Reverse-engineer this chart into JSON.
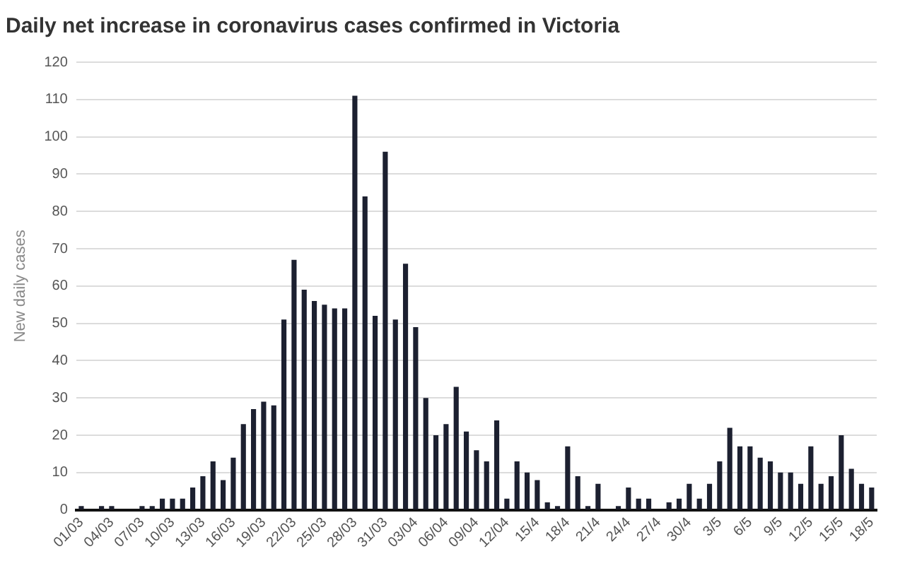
{
  "chart_data": {
    "type": "bar",
    "title": "Daily net increase in coronavirus cases confirmed in Victoria",
    "ylabel": "New daily cases",
    "categories": [
      "01/03",
      null,
      null,
      "04/03",
      null,
      null,
      "07/03",
      null,
      null,
      "10/03",
      null,
      null,
      "13/03",
      null,
      null,
      "16/03",
      null,
      null,
      "19/03",
      null,
      null,
      "22/03",
      null,
      null,
      "25/03",
      null,
      null,
      "28/03",
      null,
      null,
      "31/03",
      null,
      null,
      "03/04",
      null,
      null,
      "06/04",
      null,
      null,
      "09/04",
      null,
      null,
      "12/04",
      null,
      null,
      "15/4",
      null,
      null,
      "18/4",
      null,
      null,
      "21/4",
      null,
      null,
      "24/4",
      null,
      null,
      "27/4",
      null,
      null,
      "30/4",
      null,
      null,
      "3/5",
      null,
      null,
      "6/5",
      null,
      null,
      "9/5",
      null,
      null,
      "12/5",
      null,
      null,
      "15/5",
      null,
      null,
      "18/5"
    ],
    "values": [
      1,
      0,
      1,
      1,
      0,
      0,
      1,
      1,
      3,
      3,
      3,
      6,
      9,
      13,
      8,
      14,
      23,
      27,
      29,
      28,
      51,
      67,
      59,
      56,
      55,
      54,
      54,
      111,
      84,
      52,
      96,
      51,
      66,
      49,
      30,
      20,
      23,
      33,
      21,
      16,
      13,
      24,
      3,
      13,
      10,
      8,
      2,
      1,
      17,
      9,
      1,
      7,
      0,
      1,
      6,
      3,
      3,
      0,
      2,
      3,
      7,
      3,
      7,
      13,
      22,
      17,
      17,
      14,
      13,
      10,
      10,
      7,
      17,
      7,
      9,
      20,
      11,
      7,
      6
    ],
    "color": "#1c2030",
    "ylim": [
      0,
      120
    ],
    "yticks": [
      0,
      10,
      20,
      30,
      40,
      50,
      60,
      70,
      80,
      90,
      100,
      110,
      120
    ],
    "grid": "y"
  }
}
